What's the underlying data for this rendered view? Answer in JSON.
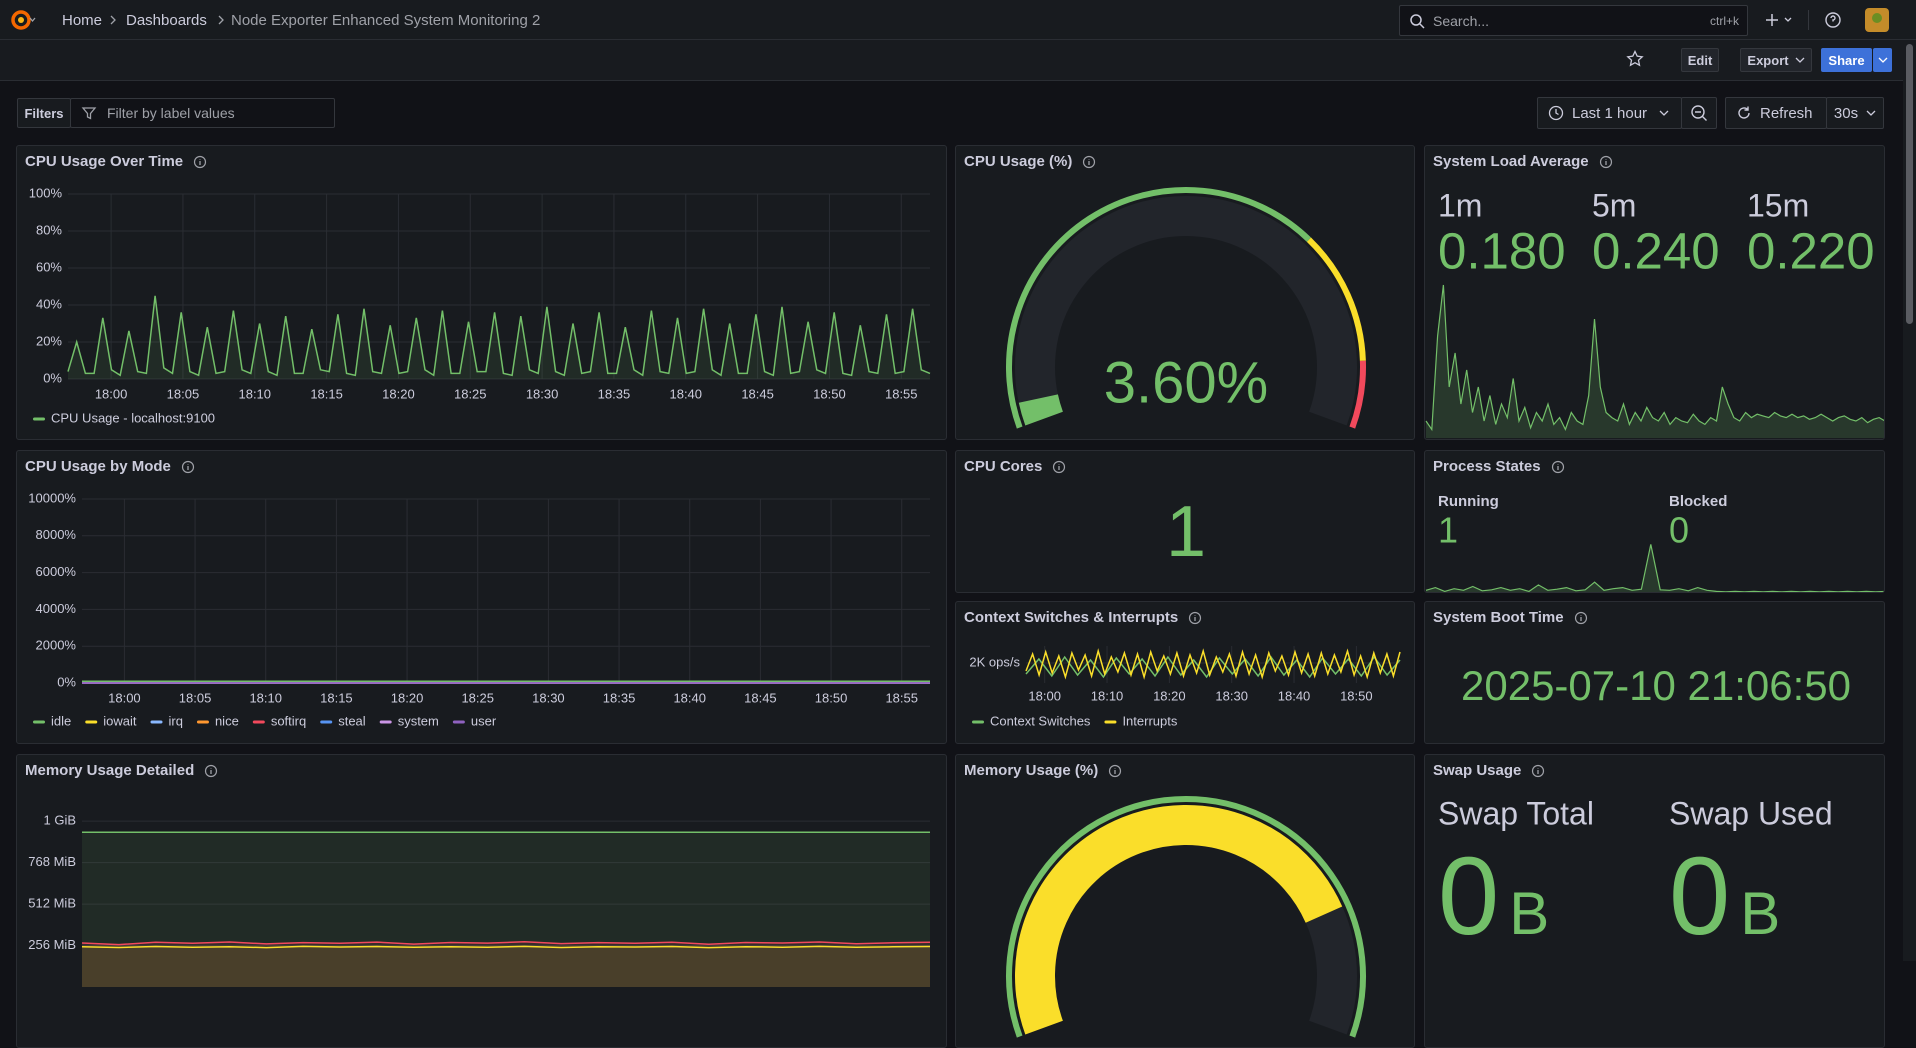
{
  "header": {
    "breadcrumbs": [
      "Home",
      "Dashboards",
      "Node Exporter Enhanced System Monitoring 2"
    ],
    "search_placeholder": "Search...",
    "search_shortcut": "ctrl+k"
  },
  "toolbar": {
    "edit": "Edit",
    "export": "Export",
    "share": "Share"
  },
  "controls": {
    "filters": "Filters",
    "filter_placeholder": "Filter by label values",
    "time_range": "Last 1 hour",
    "refresh": "Refresh",
    "interval": "30s"
  },
  "panels": [
    {
      "title": "CPU Usage Over Time",
      "chart_data": {
        "type": "line",
        "xlim": [
          "17:57",
          "18:57"
        ],
        "xticks": [
          "18:00",
          "18:05",
          "18:10",
          "18:15",
          "18:20",
          "18:25",
          "18:30",
          "18:35",
          "18:40",
          "18:45",
          "18:50",
          "18:55"
        ],
        "ylim": [
          0,
          100
        ],
        "yticks": [
          {
            "value": 0,
            "label": "0%"
          },
          {
            "value": 20,
            "label": "20%"
          },
          {
            "value": 40,
            "label": "40%"
          },
          {
            "value": 60,
            "label": "60%"
          },
          {
            "value": 80,
            "label": "80%"
          },
          {
            "value": 100,
            "label": "100%"
          }
        ],
        "fill_opacity": 0.1,
        "series": [
          {
            "name": "CPU Usage - localhost:9100",
            "color": "#73bf69",
            "values": [
              4,
              20,
              3,
              3,
              33,
              5,
              2,
              26,
              4,
              3,
              45,
              6,
              3,
              36,
              4,
              2,
              28,
              3,
              4,
              37,
              5,
              3,
              30,
              4,
              2,
              34,
              3,
              3,
              27,
              5,
              4,
              35,
              3,
              2,
              38,
              4,
              3,
              29,
              3,
              4,
              33,
              5,
              2,
              37,
              3,
              3,
              31,
              4,
              4,
              36,
              3,
              2,
              34,
              5,
              3,
              39,
              4,
              2,
              30,
              3,
              4,
              36,
              3,
              3,
              28,
              5,
              2,
              37,
              4,
              3,
              33,
              3,
              4,
              38,
              5,
              2,
              30,
              3,
              3,
              35,
              4,
              2,
              39,
              3,
              4,
              31,
              5,
              3,
              36,
              3,
              2,
              29,
              4,
              3,
              35,
              3,
              4,
              38,
              5,
              3
            ]
          }
        ]
      }
    },
    {
      "title": "CPU Usage (%)",
      "chart_data": {
        "type": "gauge",
        "value": 3.6,
        "value_label": "3.60%",
        "min": 0,
        "max": 100,
        "color": "#73bf69",
        "thresholds": [
          {
            "value": 0,
            "color": "#73bf69"
          },
          {
            "value": 70,
            "color": "#fade2a"
          },
          {
            "value": 90,
            "color": "#f2495c"
          }
        ]
      }
    },
    {
      "title": "System Load Average",
      "chart_data": {
        "type": "stat",
        "categories": [
          "1m",
          "5m",
          "15m"
        ],
        "values": [
          0.18,
          0.24,
          0.22
        ],
        "value_labels": [
          "0.180",
          "0.240",
          "0.220"
        ],
        "color": "#73bf69",
        "sparkline": {
          "ylim": [
            0,
            1
          ],
          "values": [
            0.1,
            0.05,
            0.6,
            0.9,
            0.3,
            0.5,
            0.2,
            0.4,
            0.15,
            0.3,
            0.1,
            0.25,
            0.08,
            0.2,
            0.12,
            0.35,
            0.1,
            0.18,
            0.06,
            0.15,
            0.1,
            0.2,
            0.08,
            0.12,
            0.05,
            0.15,
            0.1,
            0.08,
            0.25,
            0.7,
            0.3,
            0.15,
            0.12,
            0.1,
            0.2,
            0.08,
            0.15,
            0.1,
            0.18,
            0.12,
            0.1,
            0.15,
            0.08,
            0.12,
            0.1,
            0.09,
            0.14,
            0.1,
            0.08,
            0.12,
            0.1,
            0.3,
            0.2,
            0.12,
            0.1,
            0.15,
            0.12,
            0.14,
            0.13,
            0.12,
            0.15,
            0.13,
            0.12,
            0.14,
            0.12,
            0.13,
            0.11,
            0.12,
            0.14,
            0.12,
            0.1,
            0.12,
            0.13,
            0.11,
            0.1,
            0.12,
            0.09,
            0.11,
            0.12,
            0.1
          ]
        }
      }
    },
    {
      "title": "CPU Usage by Mode",
      "chart_data": {
        "type": "line",
        "xlim": [
          "17:57",
          "18:57"
        ],
        "xticks": [
          "18:00",
          "18:05",
          "18:10",
          "18:15",
          "18:20",
          "18:25",
          "18:30",
          "18:35",
          "18:40",
          "18:45",
          "18:50",
          "18:55"
        ],
        "ylim": [
          0,
          10000
        ],
        "yticks": [
          {
            "value": 0,
            "label": "0%"
          },
          {
            "value": 2000,
            "label": "2000%"
          },
          {
            "value": 4000,
            "label": "4000%"
          },
          {
            "value": 6000,
            "label": "6000%"
          },
          {
            "value": 8000,
            "label": "8000%"
          },
          {
            "value": 10000,
            "label": "10000%"
          }
        ],
        "series": [
          {
            "name": "idle",
            "color": "#73bf69",
            "values": [
              96,
              97,
              96,
              95,
              97,
              96,
              96,
              97,
              95,
              96,
              97,
              96
            ]
          },
          {
            "name": "iowait",
            "color": "#fade2a",
            "values": [
              0,
              0,
              0,
              0,
              0,
              0,
              0,
              0,
              0,
              0,
              0,
              0
            ]
          },
          {
            "name": "irq",
            "color": "#8ab8ff",
            "values": [
              0,
              0,
              0,
              0,
              0,
              0,
              0,
              0,
              0,
              0,
              0,
              0
            ]
          },
          {
            "name": "nice",
            "color": "#ff9830",
            "values": [
              0,
              0,
              0,
              0,
              0,
              0,
              0,
              0,
              0,
              0,
              0,
              0
            ]
          },
          {
            "name": "softirq",
            "color": "#f2495c",
            "values": [
              0,
              0,
              0,
              0,
              0,
              0,
              0,
              0,
              0,
              0,
              0,
              0
            ]
          },
          {
            "name": "steal",
            "color": "#5794f2",
            "values": [
              0,
              0,
              0,
              0,
              0,
              0,
              0,
              0,
              0,
              0,
              0,
              0
            ]
          },
          {
            "name": "system",
            "color": "#ca95e5",
            "values": [
              1,
              1,
              2,
              1,
              1,
              1,
              2,
              1,
              1,
              1,
              2,
              1
            ]
          },
          {
            "name": "user",
            "color": "#8f62c0",
            "values": [
              2,
              2,
              3,
              2,
              2,
              2,
              3,
              2,
              2,
              2,
              2,
              3
            ]
          }
        ]
      }
    },
    {
      "title": "CPU Cores",
      "chart_data": {
        "type": "stat",
        "values": [
          1
        ],
        "color": "#73bf69"
      }
    },
    {
      "title": "Process States",
      "chart_data": {
        "type": "stat",
        "categories": [
          "Running",
          "Blocked"
        ],
        "values": [
          1,
          0
        ],
        "color": "#73bf69",
        "sparkline": {
          "ylim": [
            0,
            1
          ],
          "values": [
            0.05,
            0.1,
            0.03,
            0.08,
            0.05,
            0.12,
            0.04,
            0.06,
            0.1,
            0.05,
            0.08,
            0.03,
            0.15,
            0.05,
            0.07,
            0.1,
            0.04,
            0.06,
            0.2,
            0.05,
            0.08,
            0.1,
            0.05,
            0.07,
            0.9,
            0.06,
            0.05,
            0.08,
            0.04,
            0.1,
            0.05,
            0.03,
            0.02,
            0.03,
            0.02,
            0.03,
            0.02,
            0.03,
            0.02,
            0.03,
            0.02,
            0.03,
            0.02,
            0.03,
            0.02,
            0.03,
            0.02,
            0.03,
            0.02,
            0.03
          ]
        }
      }
    },
    {
      "title": "Context Switches & Interrupts",
      "chart_data": {
        "type": "line",
        "xlim": [
          "17:57",
          "18:57"
        ],
        "xticks": [
          "18:00",
          "18:10",
          "18:20",
          "18:30",
          "18:40",
          "18:50"
        ],
        "ylim": [
          0,
          3700
        ],
        "yticks": [
          {
            "value": 2000,
            "label": "2K ops/s"
          }
        ],
        "series": [
          {
            "name": "Context Switches",
            "color": "#73bf69",
            "values": [
              900,
              2400,
              700,
              2600,
              800,
              2300,
              600,
              2500,
              900,
              2400,
              700,
              2600,
              800,
              2300,
              600,
              2500,
              900,
              2400,
              700,
              2600,
              800,
              2300,
              600,
              2500,
              900,
              2400,
              700,
              2600,
              800,
              2300
            ]
          },
          {
            "name": "Interrupts",
            "color": "#fade2a",
            "values": [
              1200,
              2900,
              800,
              3100,
              1000,
              2700,
              600,
              3000,
              1300,
              2800,
              700,
              3200,
              900,
              2600,
              1100,
              3000,
              800,
              2900,
              600,
              3100,
              1200,
              2700,
              900,
              3000,
              700,
              2800,
              1000,
              3200,
              800,
              2600,
              1100,
              2900,
              700,
              3100,
              900,
              2800,
              600,
              3000,
              1200,
              2700,
              800,
              3100,
              1000,
              2900,
              700,
              3000,
              900,
              2800,
              1100,
              3200,
              800,
              2700,
              600,
              3000,
              1000,
              2900,
              700,
              3100
            ]
          }
        ]
      }
    },
    {
      "title": "System Boot Time",
      "chart_data": {
        "type": "stat",
        "values": [
          "2025-07-10 21:06:50"
        ],
        "color": "#73bf69"
      }
    },
    {
      "title": "Memory Usage Detailed",
      "chart_data": {
        "type": "line",
        "ylim": [
          0,
          1130
        ],
        "yticks": [
          {
            "value": 256,
            "label": "256 MiB"
          },
          {
            "value": 512,
            "label": "512 MiB"
          },
          {
            "value": 768,
            "label": "768 MiB"
          },
          {
            "value": 1024,
            "label": "1 GiB"
          }
        ],
        "fill_opacity": 0.1,
        "series": [
          {
            "color": "#73bf69",
            "values": [
              956,
              956,
              956,
              956,
              956,
              956,
              956,
              956,
              956,
              956,
              956,
              956
            ]
          },
          {
            "color": "#f2495c",
            "values": [
              272,
              262,
              276,
              270,
              278,
              266,
              274,
              270,
              277,
              265,
              275,
              271,
              279,
              268,
              274,
              270,
              276,
              264,
              275,
              272,
              278,
              267,
              273,
              276
            ]
          },
          {
            "color": "#fade2a",
            "values": [
              248,
              244,
              250,
              246,
              249,
              243,
              251,
              247,
              250,
              245,
              249,
              246,
              251,
              244,
              248,
              247,
              250,
              243,
              249,
              246,
              251,
              245,
              248,
              250
            ]
          }
        ]
      }
    },
    {
      "title": "Memory Usage (%)",
      "chart_data": {
        "type": "gauge",
        "value": 80,
        "min": 0,
        "max": 100,
        "color": "#fade2a",
        "thresholds": [
          {
            "value": 0,
            "color": "#73bf69"
          }
        ]
      }
    },
    {
      "title": "Swap Usage",
      "chart_data": {
        "type": "stat",
        "categories": [
          "Swap Total",
          "Swap Used"
        ],
        "values": [
          0,
          0
        ],
        "unit": "B",
        "color": "#73bf69"
      }
    }
  ]
}
